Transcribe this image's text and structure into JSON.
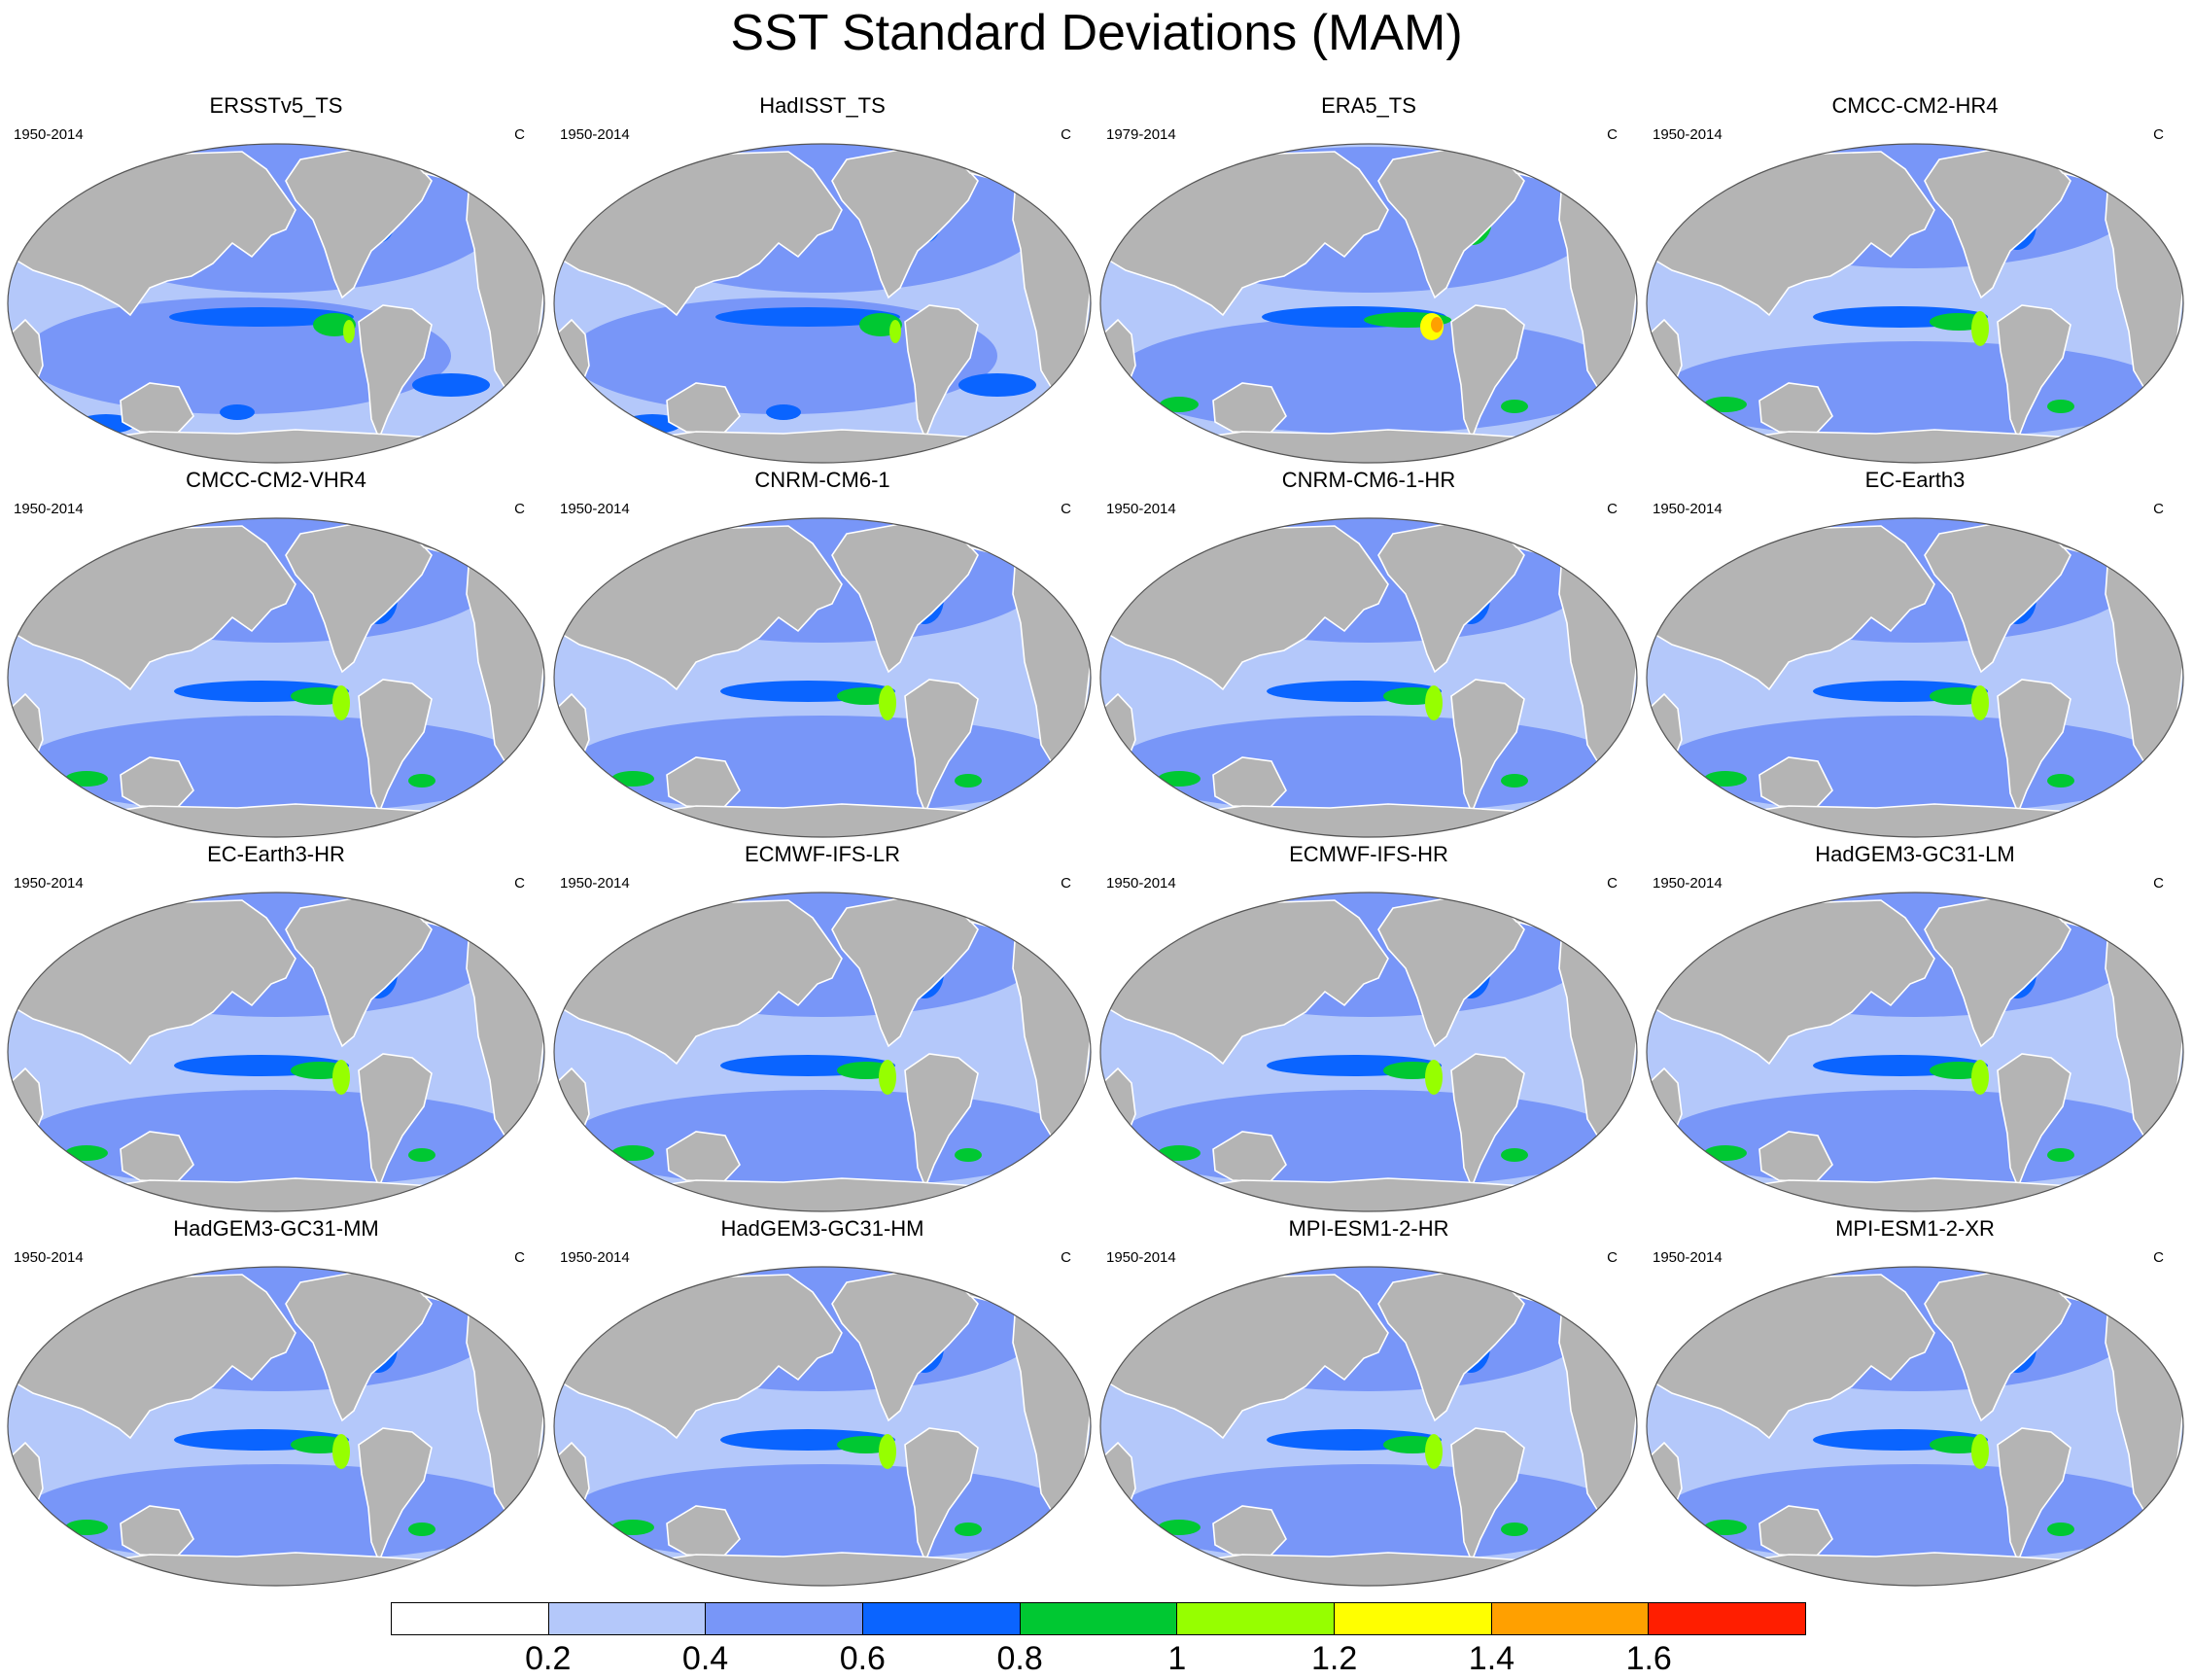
{
  "figure": {
    "title": "SST Standard Deviations (MAM)"
  },
  "colors": {
    "land": "#b4b4b4",
    "coast": "#ffffff",
    "outline": "#555555"
  },
  "panels": [
    {
      "title": "ERSSTv5_TS",
      "period": "1950-2014",
      "unit": "C"
    },
    {
      "title": "HadISST_TS",
      "period": "1950-2014",
      "unit": "C"
    },
    {
      "title": "ERA5_TS",
      "period": "1979-2014",
      "unit": "C"
    },
    {
      "title": "CMCC-CM2-HR4",
      "period": "1950-2014",
      "unit": "C"
    },
    {
      "title": "CMCC-CM2-VHR4",
      "period": "1950-2014",
      "unit": "C"
    },
    {
      "title": "CNRM-CM6-1",
      "period": "1950-2014",
      "unit": "C"
    },
    {
      "title": "CNRM-CM6-1-HR",
      "period": "1950-2014",
      "unit": "C"
    },
    {
      "title": "EC-Earth3",
      "period": "1950-2014",
      "unit": "C"
    },
    {
      "title": "EC-Earth3-HR",
      "period": "1950-2014",
      "unit": "C"
    },
    {
      "title": "ECMWF-IFS-LR",
      "period": "1950-2014",
      "unit": "C"
    },
    {
      "title": "ECMWF-IFS-HR",
      "period": "1950-2014",
      "unit": "C"
    },
    {
      "title": "HadGEM3-GC31-LM",
      "period": "1950-2014",
      "unit": "C"
    },
    {
      "title": "HadGEM3-GC31-MM",
      "period": "1950-2014",
      "unit": "C"
    },
    {
      "title": "HadGEM3-GC31-HM",
      "period": "1950-2014",
      "unit": "C"
    },
    {
      "title": "MPI-ESM1-2-HR",
      "period": "1950-2014",
      "unit": "C"
    },
    {
      "title": "MPI-ESM1-2-XR",
      "period": "1950-2014",
      "unit": "C"
    }
  ],
  "colorbar": {
    "colors": [
      "#ffffff",
      "#b4c8fa",
      "#7896f8",
      "#0a64ff",
      "#00c832",
      "#96ff00",
      "#ffff00",
      "#ffa000",
      "#ff1e00"
    ],
    "ticks": [
      "0.2",
      "0.4",
      "0.6",
      "0.8",
      "1",
      "1.2",
      "1.4",
      "1.6"
    ]
  }
}
